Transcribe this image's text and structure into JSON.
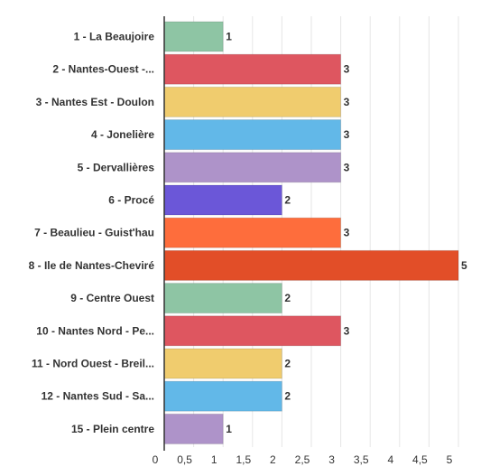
{
  "chart_data": {
    "type": "bar",
    "orientation": "horizontal",
    "categories": [
      "1 - La Beaujoire",
      "2 - Nantes-Ouest -...",
      "3 - Nantes Est - Doulon",
      "4 - Jonelière",
      "5 - Dervallières",
      "6 - Procé",
      "7 - Beaulieu - Guist'hau",
      "8 - Ile de Nantes-Cheviré",
      "9 - Centre Ouest",
      "10 - Nantes Nord - Pe...",
      "11 - Nord Ouest - Breil...",
      "12 - Nantes Sud - Sa...",
      "15 - Plein centre"
    ],
    "values": [
      1,
      3,
      3,
      3,
      3,
      2,
      3,
      5,
      2,
      3,
      2,
      2,
      1
    ],
    "data_labels": [
      "1",
      "3",
      "3",
      "3",
      "3",
      "2",
      "3",
      "5",
      "2",
      "3",
      "2",
      "2",
      "1"
    ],
    "colors": [
      "#8ec5a4",
      "#de5660",
      "#f0cc6e",
      "#62b8e8",
      "#ae93c9",
      "#6b57d8",
      "#fe6d3c",
      "#e24e28",
      "#8ec5a4",
      "#de5660",
      "#f0cc6e",
      "#62b8e8",
      "#ae93c9"
    ],
    "x_ticks": [
      0,
      0.5,
      1,
      1.5,
      2,
      2.5,
      3,
      3.5,
      4,
      4.5,
      5
    ],
    "x_tick_labels": [
      "0",
      "0,5",
      "1",
      "1,5",
      "2",
      "2,5",
      "3",
      "3,5",
      "4",
      "4,5",
      "5"
    ],
    "xlim": [
      0,
      5.2
    ],
    "grid": true,
    "legend": "none",
    "title": "",
    "xlabel": "",
    "ylabel": ""
  }
}
